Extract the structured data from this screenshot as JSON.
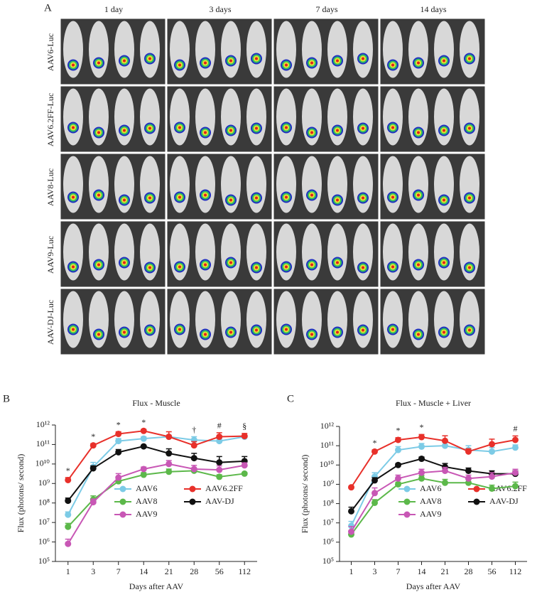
{
  "figure": {
    "panel_a": {
      "label": "A",
      "columns": [
        "1 day",
        "3 days",
        "7 days",
        "14 days"
      ],
      "rows": [
        "AAV6-Luc",
        "AAV6.2FF-Luc",
        "AAV8-Luc",
        "AAV9-Luc",
        "AAV-DJ-Luc"
      ]
    }
  },
  "chart_data": [
    {
      "type": "line",
      "panel": "B",
      "title": "Flux - Muscle",
      "x_label": "Days after AAV",
      "y_label": "Flux (photons/ second)",
      "categories": [
        1,
        3,
        7,
        14,
        21,
        28,
        56,
        112
      ],
      "log_scale": true,
      "ylim": [
        100000,
        1000000000000
      ],
      "yticks": [
        {
          "value": 100000,
          "label": "10⁵"
        },
        {
          "value": 1000000,
          "label": "10⁶"
        },
        {
          "value": 10000000,
          "label": "10⁷"
        },
        {
          "value": 100000000,
          "label": "10⁸"
        },
        {
          "value": 1000000000,
          "label": "10⁹"
        },
        {
          "value": 10000000000,
          "label": "10¹⁰"
        },
        {
          "value": 100000000000,
          "label": "10¹¹"
        },
        {
          "value": 1000000000000,
          "label": "10¹²"
        }
      ],
      "series": [
        {
          "name": "AAV6",
          "color": "#7ccbe6",
          "values": [
            25000000,
            7000000000,
            150000000000,
            200000000000,
            250000000000,
            170000000000,
            150000000000,
            250000000000
          ],
          "errors": [
            10000000,
            5000000000,
            50000000000,
            50000000000,
            50000000000,
            80000000000,
            50000000000,
            50000000000
          ]
        },
        {
          "name": "AAV6.2FF",
          "color": "#e8302a",
          "values": [
            1500000000,
            90000000000,
            350000000000,
            500000000000,
            250000000000,
            90000000000,
            250000000000,
            270000000000
          ],
          "errors": [
            500000000,
            20000000000,
            100000000000,
            100000000000,
            200000000000,
            50000000000,
            150000000000,
            100000000000
          ]
        },
        {
          "name": "AAV8",
          "color": "#5cb84a",
          "values": [
            6000000,
            150000000,
            1300000000,
            2800000000,
            4000000000,
            4500000000,
            2200000000,
            3200000000
          ],
          "errors": [
            3000000,
            80000000,
            500000000,
            800000000,
            1500000000,
            1500000000,
            600000000,
            500000000
          ]
        },
        {
          "name": "AAV-DJ",
          "color": "#111111",
          "values": [
            130000000,
            6000000000,
            40000000000,
            80000000000,
            35000000000,
            20000000000,
            12000000000,
            14000000000
          ],
          "errors": [
            50000000,
            2000000000,
            15000000000,
            10000000000,
            25000000000,
            15000000000,
            12000000000,
            10000000000
          ]
        },
        {
          "name": "AAV9",
          "color": "#c857b5",
          "values": [
            800000,
            110000000,
            2000000000,
            5500000000,
            10000000000,
            5500000000,
            5000000000,
            8500000000
          ],
          "errors": [
            600000,
            50000000,
            1200000000,
            1500000000,
            5000000000,
            3000000000,
            3000000000,
            3000000000
          ]
        }
      ],
      "annotations": [
        {
          "text": "*",
          "x": 1
        },
        {
          "text": "*",
          "x": 3
        },
        {
          "text": "*",
          "x": 7
        },
        {
          "text": "*",
          "x": 14
        },
        {
          "text": "†",
          "x": 28
        },
        {
          "text": "#",
          "x": 56
        },
        {
          "text": "§",
          "x": 112
        }
      ]
    },
    {
      "type": "line",
      "panel": "C",
      "title": "Flux - Muscle + Liver",
      "x_label": "Days after AAV",
      "y_label": "Flux (photons/ second)",
      "categories": [
        1,
        3,
        7,
        14,
        21,
        28,
        56,
        112
      ],
      "log_scale": true,
      "ylim": [
        100000,
        1000000000000
      ],
      "yticks": [
        {
          "value": 100000,
          "label": "10⁵"
        },
        {
          "value": 1000000,
          "label": "10⁶"
        },
        {
          "value": 10000000,
          "label": "10⁷"
        },
        {
          "value": 100000000,
          "label": "10⁸"
        },
        {
          "value": 1000000000,
          "label": "10⁹"
        },
        {
          "value": 10000000000,
          "label": "10¹⁰"
        },
        {
          "value": 100000000000,
          "label": "10¹¹"
        },
        {
          "value": 1000000000000,
          "label": "10¹²"
        }
      ],
      "series": [
        {
          "name": "AAV6",
          "color": "#7ccbe6",
          "values": [
            7000000,
            2500000000,
            60000000000,
            90000000000,
            100000000000,
            60000000000,
            50000000000,
            80000000000
          ],
          "errors": [
            5000000,
            1500000000,
            30000000000,
            40000000000,
            50000000000,
            40000000000,
            30000000000,
            30000000000
          ]
        },
        {
          "name": "AAV6.2FF",
          "color": "#e8302a",
          "values": [
            700000000,
            50000000000,
            200000000000,
            280000000000,
            180000000000,
            50000000000,
            120000000000,
            200000000000
          ],
          "errors": [
            100000000,
            10000000000,
            60000000000,
            100000000000,
            150000000000,
            20000000000,
            100000000000,
            120000000000
          ]
        },
        {
          "name": "AAV8",
          "color": "#5cb84a",
          "values": [
            2500000,
            110000000,
            1000000000,
            2000000000,
            1200000000,
            1200000000,
            600000000,
            800000000
          ],
          "errors": [
            1500000,
            50000000,
            300000000,
            800000000,
            600000000,
            600000000,
            300000000,
            500000000
          ]
        },
        {
          "name": "AAV-DJ",
          "color": "#111111",
          "values": [
            40000000,
            1600000000,
            10000000000,
            21000000000,
            8000000000,
            5000000000,
            3500000000,
            3500000000
          ],
          "errors": [
            25000000,
            600000000,
            2000000000,
            5000000000,
            4000000000,
            2000000000,
            1500000000,
            1500000000
          ]
        },
        {
          "name": "AAV9",
          "color": "#c857b5",
          "values": [
            3500000,
            350000000,
            2000000000,
            4000000000,
            5000000000,
            2000000000,
            2500000000,
            4000000000
          ],
          "errors": [
            3000000,
            300000000,
            1000000000,
            2000000000,
            2500000000,
            1000000000,
            1500000000,
            2000000000
          ]
        }
      ],
      "annotations": [
        {
          "text": "*",
          "x": 3
        },
        {
          "text": "*",
          "x": 7
        },
        {
          "text": "*",
          "x": 14
        },
        {
          "text": "#",
          "x": 112
        }
      ]
    }
  ]
}
